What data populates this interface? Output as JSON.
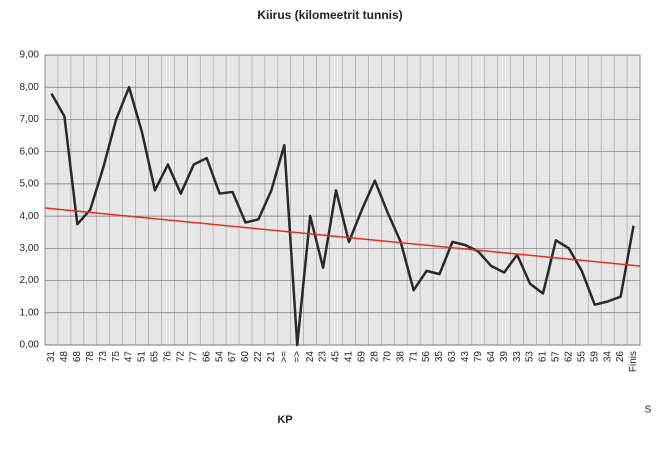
{
  "chart_data": {
    "type": "line",
    "title": "Kiirus (kilomeetrit tunnis)",
    "x_label": "KP",
    "categories": [
      "31",
      "48",
      "68",
      "78",
      "73",
      "75",
      "47",
      "51",
      "65",
      "76",
      "72",
      "77",
      "66",
      "54",
      "67",
      "60",
      "22",
      "21",
      ">=",
      "=>",
      "24",
      "23",
      "45",
      "41",
      "69",
      "28",
      "70",
      "38",
      "71",
      "56",
      "35",
      "63",
      "43",
      "79",
      "64",
      "39",
      "33",
      "53",
      "61",
      "57",
      "62",
      "55",
      "59",
      "34",
      "26",
      "Finis"
    ],
    "series": [
      {
        "name": "S",
        "color": "#2a2a2a",
        "values": [
          7.8,
          7.1,
          3.75,
          4.2,
          5.5,
          7.0,
          8.0,
          6.6,
          4.8,
          5.6,
          4.7,
          5.6,
          5.8,
          4.7,
          4.75,
          3.8,
          3.9,
          4.8,
          6.2,
          0,
          4.0,
          2.4,
          4.8,
          3.2,
          4.2,
          5.1,
          4.1,
          3.2,
          1.7,
          2.3,
          2.2,
          3.2,
          3.1,
          2.9,
          2.45,
          2.25,
          2.8,
          1.9,
          1.6,
          3.25,
          3.0,
          2.3,
          1.25,
          1.35,
          1.5,
          3.7
        ]
      }
    ],
    "trend_line": {
      "start": 4.25,
      "end": 2.45,
      "color": "#e03020"
    },
    "ylim": [
      0,
      9
    ],
    "yticks": [
      {
        "value": 0,
        "label": "0,00"
      },
      {
        "value": 1,
        "label": "1,00"
      },
      {
        "value": 2,
        "label": "2,00"
      },
      {
        "value": 3,
        "label": "3,00"
      },
      {
        "value": 4,
        "label": "4,00"
      },
      {
        "value": 5,
        "label": "5,00"
      },
      {
        "value": 6,
        "label": "6,00"
      },
      {
        "value": 7,
        "label": "7,00"
      },
      {
        "value": 8,
        "label": "8,00"
      },
      {
        "value": 9,
        "label": "9,00"
      }
    ],
    "grid": true
  }
}
